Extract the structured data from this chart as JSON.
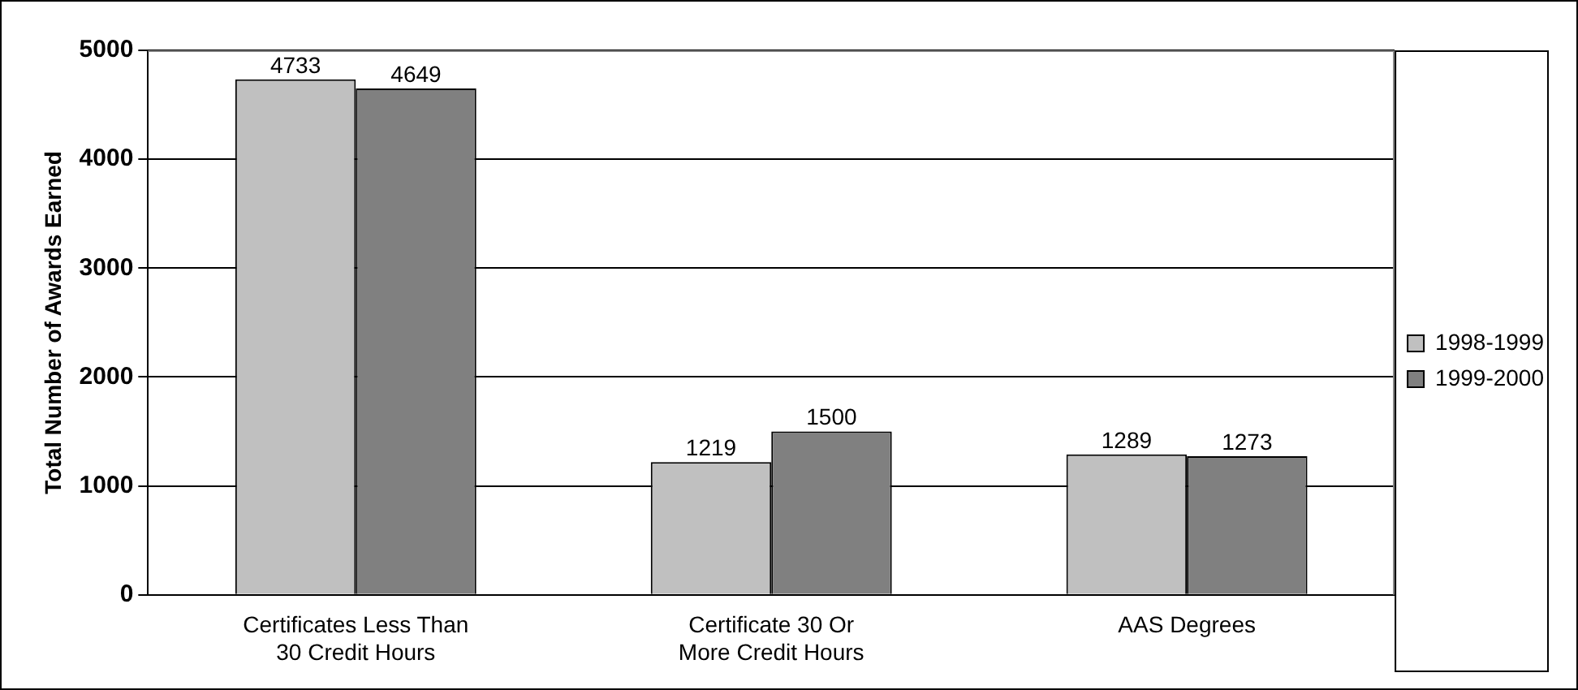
{
  "chart_data": {
    "type": "bar",
    "ylabel": "Total Number of Awards Earned",
    "categories": [
      "Certificates Less Than 30 Credit Hours",
      "Certificate 30 Or More Credit Hours",
      "AAS Degrees"
    ],
    "series": [
      {
        "name": "1998-1999",
        "color": "#c0c0c0",
        "values": [
          4733,
          1219,
          1289
        ]
      },
      {
        "name": "1999-2000",
        "color": "#808080",
        "values": [
          4649,
          1500,
          1273
        ]
      }
    ],
    "ylim": [
      0,
      5000
    ],
    "yticks": [
      0,
      1000,
      2000,
      3000,
      4000,
      5000
    ],
    "grid": "y",
    "legend": "right",
    "data_labels": true
  }
}
